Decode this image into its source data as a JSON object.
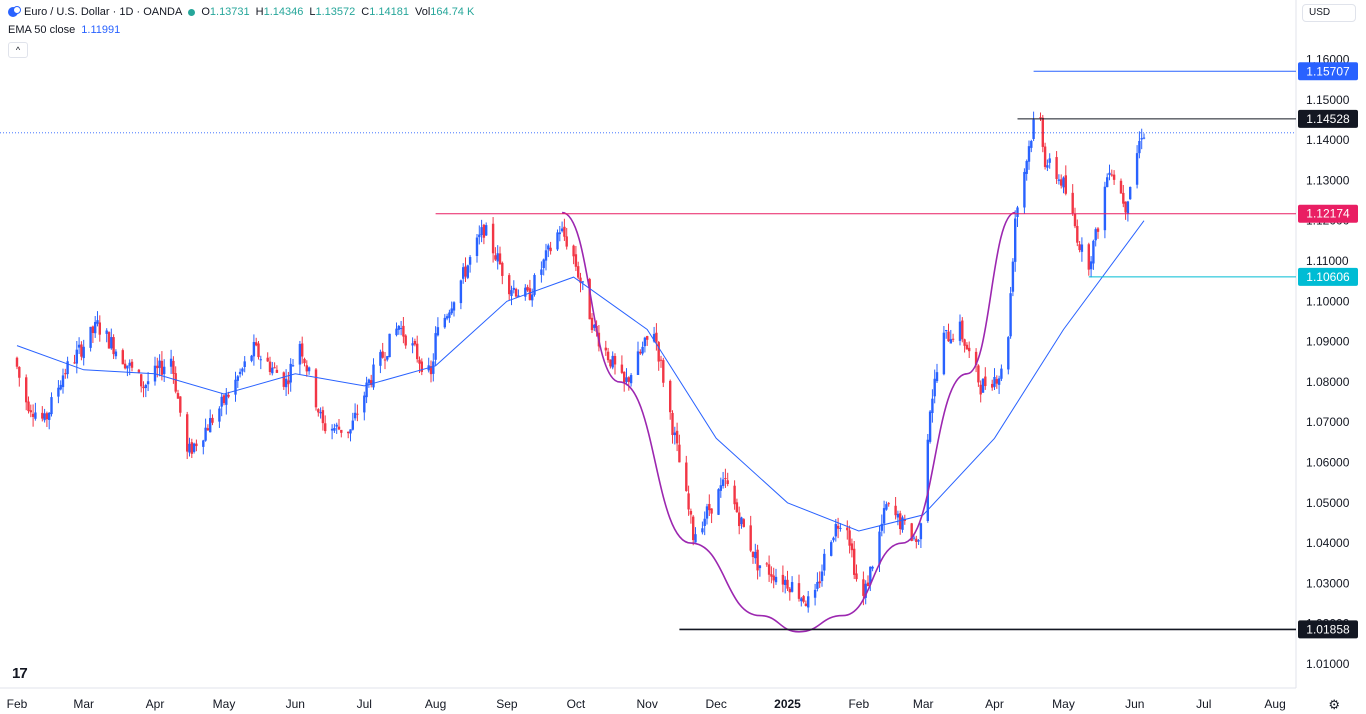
{
  "header": {
    "symbol": "Euro / U.S. Dollar · 1D · OANDA",
    "o_label": "O",
    "o_value": "1.13731",
    "h_label": "H",
    "h_value": "1.14346",
    "l_label": "L",
    "l_value": "1.13572",
    "c_label": "C",
    "c_value": "1.14181",
    "vol_label": "Vol",
    "vol_value": "164.74 K",
    "ema_label": "EMA 50 close",
    "ema_value": "1.11991",
    "currency": "USD",
    "collapse_glyph": "^"
  },
  "colors": {
    "up": "#2962ff",
    "down": "#f23645",
    "ema": "#2962ff",
    "cup": "#9c27b0",
    "magenta_level": "#e91e63",
    "cyan_level": "#00bcd4",
    "dark_level": "#131722",
    "blue_level": "#2962ff"
  },
  "chart_data": {
    "type": "candlestick",
    "ylim": [
      1.0,
      1.165
    ],
    "y_ticks": [
      "1.16000",
      "1.15000",
      "1.14000",
      "1.13000",
      "1.12000",
      "1.11000",
      "1.10000",
      "1.09000",
      "1.08000",
      "1.07000",
      "1.06000",
      "1.05000",
      "1.04000",
      "1.03000",
      "1.02000",
      "1.01000"
    ],
    "x_labels": [
      "Feb",
      "Mar",
      "Apr",
      "May",
      "Jun",
      "Jul",
      "Aug",
      "Sep",
      "Oct",
      "Nov",
      "Dec",
      "2025",
      "Feb",
      "Mar",
      "Apr",
      "May",
      "Jun",
      "Jul",
      "Aug"
    ],
    "x_label_months": [
      "2024-02",
      "2024-03",
      "2024-04",
      "2024-05",
      "2024-06",
      "2024-07",
      "2024-08",
      "2024-09",
      "2024-10",
      "2024-11",
      "2024-12",
      "2025-01",
      "2025-02",
      "2025-03",
      "2025-04",
      "2025-05",
      "2025-06",
      "2025-07",
      "2025-08"
    ],
    "price_path": [
      [
        "2024-02-01",
        1.086
      ],
      [
        "2024-02-05",
        1.076
      ],
      [
        "2024-02-14",
        1.07
      ],
      [
        "2024-02-22",
        1.082
      ],
      [
        "2024-03-08",
        1.094
      ],
      [
        "2024-03-19",
        1.086
      ],
      [
        "2024-03-28",
        1.079
      ],
      [
        "2024-04-09",
        1.086
      ],
      [
        "2024-04-16",
        1.062
      ],
      [
        "2024-04-26",
        1.07
      ],
      [
        "2024-05-03",
        1.076
      ],
      [
        "2024-05-15",
        1.088
      ],
      [
        "2024-05-29",
        1.08
      ],
      [
        "2024-06-04",
        1.09
      ],
      [
        "2024-06-14",
        1.069
      ],
      [
        "2024-06-26",
        1.068
      ],
      [
        "2024-07-04",
        1.08
      ],
      [
        "2024-07-17",
        1.094
      ],
      [
        "2024-07-31",
        1.081
      ],
      [
        "2024-08-02",
        1.091
      ],
      [
        "2024-08-23",
        1.118
      ],
      [
        "2024-09-03",
        1.104
      ],
      [
        "2024-09-11",
        1.101
      ],
      [
        "2024-09-25",
        1.118
      ],
      [
        "2024-09-30",
        1.113
      ],
      [
        "2024-10-10",
        1.093
      ],
      [
        "2024-10-23",
        1.079
      ],
      [
        "2024-10-31",
        1.088
      ],
      [
        "2024-11-05",
        1.093
      ],
      [
        "2024-11-22",
        1.042
      ],
      [
        "2024-12-06",
        1.055
      ],
      [
        "2024-12-20",
        1.035
      ],
      [
        "2025-01-03",
        1.03
      ],
      [
        "2025-01-13",
        1.024
      ],
      [
        "2025-01-20",
        1.041
      ],
      [
        "2025-01-27",
        1.048
      ],
      [
        "2025-02-03",
        1.024
      ],
      [
        "2025-02-14",
        1.049
      ],
      [
        "2025-02-28",
        1.04
      ],
      [
        "2025-03-05",
        1.074
      ],
      [
        "2025-03-11",
        1.091
      ],
      [
        "2025-03-18",
        1.093
      ],
      [
        "2025-03-27",
        1.079
      ],
      [
        "2025-04-07",
        1.083
      ],
      [
        "2025-04-11",
        1.121
      ],
      [
        "2025-04-21",
        1.15
      ],
      [
        "2025-04-24",
        1.135
      ],
      [
        "2025-05-02",
        1.129
      ],
      [
        "2025-05-12",
        1.108
      ],
      [
        "2025-05-16",
        1.116
      ],
      [
        "2025-05-22",
        1.134
      ],
      [
        "2025-05-29",
        1.124
      ],
      [
        "2025-06-05",
        1.142
      ]
    ],
    "ema_path": [
      [
        "2024-02-01",
        1.089
      ],
      [
        "2024-03-01",
        1.083
      ],
      [
        "2024-04-01",
        1.082
      ],
      [
        "2024-05-01",
        1.077
      ],
      [
        "2024-06-01",
        1.082
      ],
      [
        "2024-07-01",
        1.079
      ],
      [
        "2024-08-01",
        1.084
      ],
      [
        "2024-09-01",
        1.1
      ],
      [
        "2024-09-30",
        1.106
      ],
      [
        "2024-11-01",
        1.093
      ],
      [
        "2024-12-01",
        1.066
      ],
      [
        "2025-01-01",
        1.05
      ],
      [
        "2025-02-01",
        1.043
      ],
      [
        "2025-03-01",
        1.047
      ],
      [
        "2025-04-01",
        1.066
      ],
      [
        "2025-05-01",
        1.093
      ],
      [
        "2025-06-05",
        1.12
      ]
    ],
    "horizontal_levels": [
      {
        "value": 1.15707,
        "label": "1.15707",
        "color": "#2962ff",
        "from": "2025-04-18",
        "to": "2025-07-31"
      },
      {
        "value": 1.14528,
        "label": "1.14528",
        "color": "#131722",
        "from": "2025-04-11",
        "to": "2025-07-31"
      },
      {
        "value": 1.12174,
        "label": "1.12174",
        "color": "#e91e63",
        "from": "2024-08-01",
        "to": "2025-07-31"
      },
      {
        "value": 1.10606,
        "label": "1.10606",
        "color": "#00bcd4",
        "from": "2025-05-12",
        "to": "2025-07-31"
      },
      {
        "value": 1.01858,
        "label": "1.01858",
        "color": "#131722",
        "from": "2024-11-15",
        "to": "2025-07-31"
      }
    ],
    "current_price": 1.14181,
    "cup_curve": [
      [
        "2024-09-25",
        1.122
      ],
      [
        "2024-10-20",
        1.08
      ],
      [
        "2024-11-20",
        1.04
      ],
      [
        "2024-12-20",
        1.022
      ],
      [
        "2025-01-06",
        1.018
      ],
      [
        "2025-01-25",
        1.022
      ],
      [
        "2025-02-20",
        1.04
      ],
      [
        "2025-03-20",
        1.082
      ],
      [
        "2025-04-10",
        1.122
      ]
    ]
  }
}
